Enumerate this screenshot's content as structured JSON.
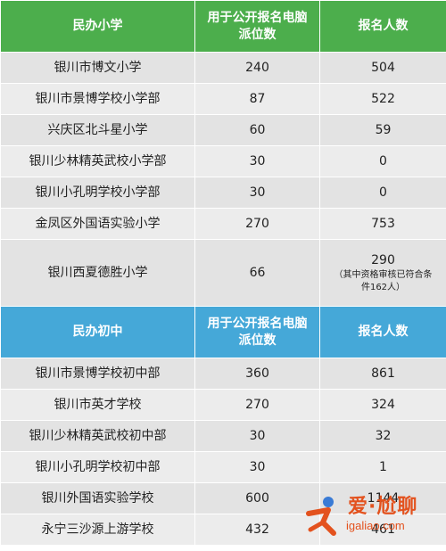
{
  "primary": {
    "header": {
      "name": "民办小学",
      "seats": "用于公开报名电脑派位数",
      "applicants": "报名人数"
    },
    "rows": [
      {
        "name": "银川市博文小学",
        "seats": "240",
        "applicants": "504",
        "note": ""
      },
      {
        "name": "银川市景博学校小学部",
        "seats": "87",
        "applicants": "522",
        "note": ""
      },
      {
        "name": "兴庆区北斗星小学",
        "seats": "60",
        "applicants": "59",
        "note": ""
      },
      {
        "name": "银川少林精英武校小学部",
        "seats": "30",
        "applicants": "0",
        "note": ""
      },
      {
        "name": "银川小孔明学校小学部",
        "seats": "30",
        "applicants": "0",
        "note": ""
      },
      {
        "name": "金凤区外国语实验小学",
        "seats": "270",
        "applicants": "753",
        "note": ""
      },
      {
        "name": "银川西夏德胜小学",
        "seats": "66",
        "applicants": "290",
        "note": "（其中资格审核已符合条件162人）"
      }
    ]
  },
  "middle": {
    "header": {
      "name": "民办初中",
      "seats": "用于公开报名电脑派位数",
      "applicants": "报名人数"
    },
    "rows": [
      {
        "name": "银川市景博学校初中部",
        "seats": "360",
        "applicants": "861"
      },
      {
        "name": "银川市英才学校",
        "seats": "270",
        "applicants": "324"
      },
      {
        "name": "银川少林精英武校初中部",
        "seats": "30",
        "applicants": "32"
      },
      {
        "name": "银川小孔明学校初中部",
        "seats": "30",
        "applicants": "1"
      },
      {
        "name": "银川外国语实验学校",
        "seats": "600",
        "applicants": "1144"
      },
      {
        "name": "永宁三沙源上游学校",
        "seats": "432",
        "applicants": "461"
      }
    ]
  },
  "watermark": {
    "main": "爱·尬聊",
    "sub": "igaliao.com"
  },
  "colors": {
    "green_header": "#4cae4c",
    "blue_header": "#45a8d8",
    "row_bg": "#e3e3e3",
    "watermark": "#e3521e"
  }
}
